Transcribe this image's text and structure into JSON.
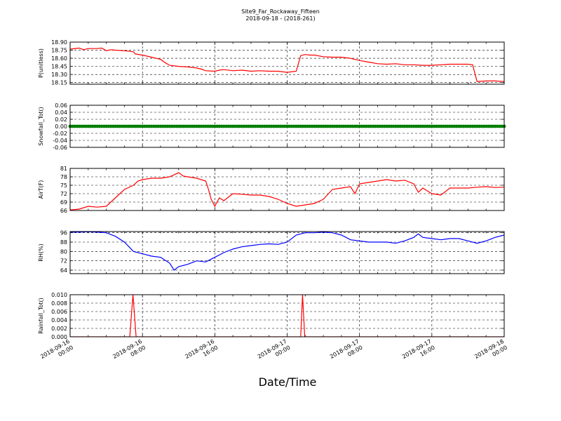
{
  "title": "Site9_Far_Rockaway_Fifteen",
  "subtitle": "2018-09-18 - (2018-261)",
  "xlabel": "Date/Time",
  "x_ticks": [
    [
      "2018-09-16",
      "00:00"
    ],
    [
      "2018-09-16",
      "08:00"
    ],
    [
      "2018-09-16",
      "16:00"
    ],
    [
      "2018-09-17",
      "00:00"
    ],
    [
      "2018-09-17",
      "08:00"
    ],
    [
      "2018-09-17",
      "16:00"
    ],
    [
      "2018-09-18",
      "00:00"
    ]
  ],
  "x_hour_range": [
    0,
    48
  ],
  "chart_data": [
    {
      "type": "line",
      "ylabel": "P(unitless)",
      "color": "#ff0000",
      "ylim": [
        18.12,
        18.9
      ],
      "yticks": [
        "18.15",
        "18.30",
        "18.45",
        "18.60",
        "18.75",
        "18.90"
      ],
      "x_hours": [
        0,
        1,
        1.5,
        2,
        3,
        3.5,
        4,
        4.5,
        5,
        6,
        7,
        7.2,
        8,
        9,
        10,
        10.5,
        11,
        12,
        13,
        14,
        14.5,
        15,
        16,
        16.5,
        17,
        18,
        19,
        20,
        21,
        22,
        23,
        24,
        25,
        25.5,
        26,
        26.5,
        27,
        28,
        29,
        30,
        31,
        32,
        33,
        34,
        35,
        36,
        37,
        38,
        39,
        40,
        41,
        42,
        43,
        44,
        44.5,
        45,
        46,
        47,
        48
      ],
      "y": [
        18.77,
        18.79,
        18.76,
        18.78,
        18.78,
        18.79,
        18.74,
        18.76,
        18.75,
        18.74,
        18.72,
        18.68,
        18.66,
        18.62,
        18.58,
        18.52,
        18.47,
        18.45,
        18.44,
        18.42,
        18.4,
        18.37,
        18.36,
        18.38,
        18.39,
        18.37,
        18.38,
        18.36,
        18.37,
        18.36,
        18.36,
        18.34,
        18.36,
        18.65,
        18.67,
        18.66,
        18.66,
        18.63,
        18.62,
        18.62,
        18.6,
        18.56,
        18.53,
        18.5,
        18.49,
        18.5,
        18.48,
        18.48,
        18.47,
        18.47,
        18.48,
        18.49,
        18.49,
        18.49,
        18.48,
        18.17,
        18.18,
        18.18,
        18.17
      ]
    },
    {
      "type": "scatter",
      "ylabel": "Snowfall_Tot()",
      "color": "#007f00",
      "ylim": [
        -0.06,
        0.06
      ],
      "yticks": [
        "-0.06",
        "-0.04",
        "-0.02",
        "0.00",
        "0.02",
        "0.04",
        "0.06"
      ],
      "x_hours": [
        0,
        48
      ],
      "y": [
        0,
        0
      ]
    },
    {
      "type": "line",
      "ylabel": "AirT(F)",
      "color": "#ff0000",
      "ylim": [
        66,
        81
      ],
      "yticks": [
        "66",
        "69",
        "72",
        "75",
        "78",
        "81"
      ],
      "x_hours": [
        0,
        1,
        2,
        3,
        4,
        5,
        6,
        7,
        7.5,
        8,
        9,
        10,
        11,
        12,
        12.5,
        13,
        14,
        15,
        15.3,
        15.6,
        16,
        16.5,
        17,
        18,
        19,
        20,
        21,
        22,
        23,
        24,
        25,
        26,
        27,
        28,
        29,
        30,
        31,
        31.5,
        32,
        33,
        34,
        35,
        36,
        37,
        38,
        38.5,
        39,
        40,
        41,
        42,
        43,
        44,
        45,
        46,
        47,
        48
      ],
      "y": [
        66.2,
        66.5,
        67.5,
        67.2,
        67.5,
        70.5,
        73.5,
        75.0,
        76.5,
        77.0,
        77.5,
        77.5,
        78.0,
        79.5,
        78.3,
        78.0,
        77.5,
        76.5,
        73.5,
        70.0,
        67.5,
        70.5,
        69.5,
        72.0,
        71.8,
        71.5,
        71.5,
        71.0,
        70.0,
        68.5,
        67.5,
        68.0,
        68.5,
        70.0,
        73.5,
        74.0,
        74.5,
        72.0,
        75.5,
        76.0,
        76.5,
        77.0,
        76.5,
        76.8,
        75.5,
        72.5,
        74.0,
        72.0,
        71.5,
        74.0,
        74.0,
        74.0,
        74.3,
        74.5,
        74.2,
        74.3
      ]
    },
    {
      "type": "line",
      "ylabel": "RH(%)",
      "color": "#0000ff",
      "ylim": [
        61,
        97
      ],
      "yticks": [
        "64",
        "72",
        "80",
        "88",
        "96"
      ],
      "x_hours": [
        0,
        1,
        2,
        3,
        4,
        5,
        6,
        7,
        8,
        9,
        10,
        11,
        11.5,
        12,
        13,
        14,
        15,
        16,
        17,
        18,
        19,
        20,
        21,
        22,
        23,
        24,
        25,
        26,
        27,
        28,
        29,
        30,
        31,
        32,
        33,
        34,
        35,
        36,
        37,
        38,
        38.5,
        39,
        40,
        41,
        42,
        43,
        44,
        45,
        46,
        47,
        48
      ],
      "y": [
        96.5,
        96.5,
        96.8,
        96.5,
        96.0,
        93.0,
        88.0,
        80.0,
        78.0,
        76.0,
        75.0,
        70.0,
        64.0,
        67.0,
        69.0,
        72.0,
        71.0,
        75.0,
        79.0,
        82.0,
        84.0,
        85.0,
        86.0,
        86.5,
        86.0,
        88.0,
        94.0,
        96.0,
        96.0,
        96.5,
        96.0,
        94.0,
        90.0,
        89.0,
        88.0,
        88.0,
        88.0,
        87.0,
        89.0,
        92.0,
        95.0,
        92.0,
        91.0,
        90.0,
        91.0,
        91.0,
        89.0,
        87.0,
        89.0,
        92.0,
        94.0
      ]
    },
    {
      "type": "line",
      "ylabel": "Rainfall_Tot()",
      "color": "#ff0000",
      "ylim": [
        0,
        0.01
      ],
      "yticks": [
        "0.000",
        "0.002",
        "0.004",
        "0.006",
        "0.008",
        "0.010"
      ],
      "x_hours": [
        0,
        6.6,
        6.95,
        7.3,
        25.5,
        25.7,
        25.95,
        48
      ],
      "y": [
        0,
        0,
        0.01,
        0,
        0,
        0.01,
        0,
        0
      ]
    }
  ]
}
